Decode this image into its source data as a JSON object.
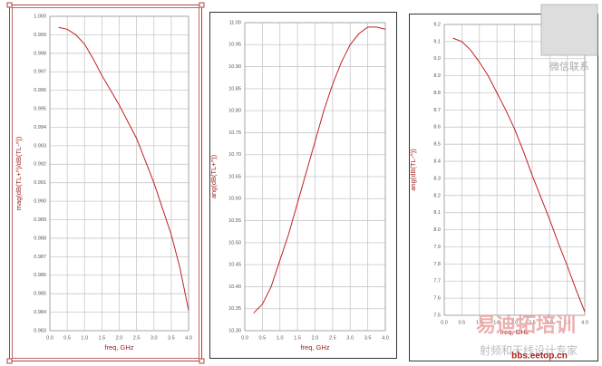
{
  "chart_data": [
    {
      "type": "line",
      "x_label": "freq, GHz",
      "y_label": "mag(dB(TL+^)/dB(TL-^))",
      "x": [
        0.25,
        0.5,
        0.75,
        1.0,
        1.25,
        1.5,
        1.75,
        2.0,
        2.25,
        2.5,
        2.75,
        3.0,
        3.25,
        3.5,
        3.75,
        4.0
      ],
      "series": [
        {
          "color": "#c02020",
          "values": [
            0.9994,
            0.9993,
            0.999,
            0.9985,
            0.9977,
            0.9968,
            0.996,
            0.9952,
            0.9943,
            0.9934,
            0.9922,
            0.991,
            0.9896,
            0.9882,
            0.9864,
            0.9841
          ]
        }
      ],
      "xlim": [
        0,
        4
      ],
      "xticks": [
        {
          "value": 0,
          "label": "0.0"
        },
        0.5,
        {
          "value": 1,
          "label": "1.0"
        },
        1.5,
        {
          "value": 2,
          "label": "2.0"
        },
        2.5,
        {
          "value": 3,
          "label": "3.0"
        },
        3.5,
        {
          "value": 4,
          "label": "4.0"
        }
      ],
      "ylim": [
        0.983,
        1.0
      ],
      "yticks": [
        0.983,
        0.984,
        0.985,
        0.986,
        0.987,
        0.988,
        0.989,
        {
          "value": 0.99,
          "label": "0.990"
        },
        0.991,
        0.992,
        0.993,
        0.994,
        0.995,
        0.996,
        0.997,
        0.998,
        0.999,
        {
          "value": 1,
          "label": "1.000"
        }
      ],
      "grid": true
    },
    {
      "type": "line",
      "x_label": "freq, GHz",
      "y_label": "ang(dB(TL+^))",
      "x": [
        0.25,
        0.5,
        0.75,
        1.0,
        1.25,
        1.5,
        1.75,
        2.0,
        2.25,
        2.5,
        2.75,
        3.0,
        3.25,
        3.5,
        3.75,
        4.0
      ],
      "series": [
        {
          "color": "#c02020",
          "values": [
            10.34,
            10.36,
            10.4,
            10.46,
            10.52,
            10.59,
            10.66,
            10.73,
            10.8,
            10.86,
            10.91,
            10.95,
            10.975,
            10.99,
            10.99,
            10.985
          ]
        }
      ],
      "xlim": [
        0,
        4
      ],
      "xticks": [
        {
          "value": 0,
          "label": "0.0"
        },
        0.5,
        {
          "value": 1,
          "label": "1.0"
        },
        1.5,
        {
          "value": 2,
          "label": "2.0"
        },
        2.5,
        {
          "value": 3,
          "label": "3.0"
        },
        3.5,
        {
          "value": 4,
          "label": "4.0"
        }
      ],
      "ylim": [
        10.3,
        11.0
      ],
      "yticks": [
        {
          "value": 10.3,
          "label": "10.30"
        },
        10.35,
        {
          "value": 10.4,
          "label": "10.40"
        },
        10.45,
        {
          "value": 10.5,
          "label": "10.50"
        },
        10.55,
        {
          "value": 10.6,
          "label": "10.60"
        },
        10.65,
        {
          "value": 10.7,
          "label": "10.70"
        },
        10.75,
        {
          "value": 10.8,
          "label": "10.80"
        },
        10.85,
        {
          "value": 10.9,
          "label": "10.90"
        },
        10.95,
        {
          "value": 11,
          "label": "11.00"
        }
      ],
      "grid": true
    },
    {
      "type": "line",
      "x_label": "freq, GHz",
      "y_label": "ang(dB(TL-^))",
      "x": [
        0.25,
        0.5,
        0.75,
        1.0,
        1.25,
        1.5,
        1.75,
        2.0,
        2.25,
        2.5,
        2.75,
        3.0,
        3.25,
        3.5,
        3.75,
        4.0
      ],
      "series": [
        {
          "color": "#c02020",
          "values": [
            9.12,
            9.1,
            9.05,
            8.98,
            8.9,
            8.8,
            8.7,
            8.59,
            8.46,
            8.32,
            8.19,
            8.06,
            7.92,
            7.79,
            7.65,
            7.52
          ]
        }
      ],
      "xlim": [
        0,
        4
      ],
      "xticks": [
        {
          "value": 0,
          "label": "0.0"
        },
        0.5,
        {
          "value": 1,
          "label": "1.0"
        },
        1.5,
        {
          "value": 2,
          "label": "2.0"
        },
        2.5,
        {
          "value": 3,
          "label": "3.0"
        },
        3.5,
        {
          "value": 4,
          "label": "4.0"
        }
      ],
      "ylim": [
        7.5,
        9.2
      ],
      "yticks": [
        7.5,
        7.6,
        7.7,
        7.8,
        7.9,
        {
          "value": 8,
          "label": "8.0"
        },
        8.1,
        8.2,
        8.3,
        8.4,
        8.5,
        8.6,
        8.7,
        8.8,
        8.9,
        {
          "value": 9,
          "label": "9.0"
        },
        9.1,
        9.2
      ],
      "grid": true
    }
  ],
  "watermark": {
    "brand": "易迪拓培训",
    "slogan": "射频和天线设计专家",
    "site": "bbs.eetop.cn",
    "wechat": "微信联系"
  }
}
